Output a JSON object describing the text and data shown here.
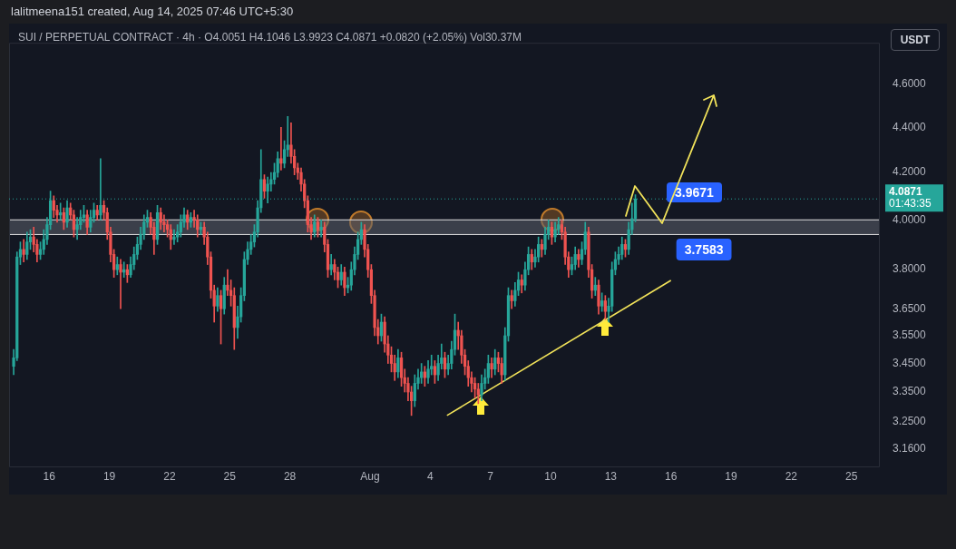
{
  "chart_data": {
    "type": "candlestick",
    "title": "lalitmeena151 created, Aug 14, 2025 07:46 UTC+5:30",
    "subtitle": "SUI / PERPETUAL CONTRACT · 4h · O4.0051 H4.1046 L3.9923 C4.0871 +0.0820 (+2.05%) Vol30.37M",
    "ylabel": "USDT",
    "x": [
      "2025-07-14T05:30",
      "2025-07-14T09:30",
      "2025-07-14T13:30",
      "2025-07-14T17:30",
      "2025-07-14T21:30",
      "2025-07-15T01:30",
      "2025-07-15T05:30",
      "2025-07-15T09:30",
      "2025-07-15T13:30",
      "2025-07-15T17:30",
      "2025-07-15T21:30",
      "2025-07-16T01:30",
      "2025-07-16T05:30",
      "2025-07-16T09:30",
      "2025-07-16T13:30",
      "2025-07-16T17:30",
      "2025-07-16T21:30",
      "2025-07-17T01:30",
      "2025-07-17T05:30",
      "2025-07-17T09:30",
      "2025-07-17T13:30",
      "2025-07-17T17:30",
      "2025-07-17T21:30",
      "2025-07-18T01:30",
      "2025-07-18T05:30",
      "2025-07-18T09:30",
      "2025-07-18T13:30",
      "2025-07-18T17:30",
      "2025-07-18T21:30",
      "2025-07-19T01:30",
      "2025-07-19T05:30",
      "2025-07-19T09:30",
      "2025-07-19T13:30",
      "2025-07-19T17:30",
      "2025-07-19T21:30",
      "2025-07-20T01:30",
      "2025-07-20T05:30",
      "2025-07-20T09:30",
      "2025-07-20T13:30",
      "2025-07-20T17:30",
      "2025-07-20T21:30",
      "2025-07-21T01:30",
      "2025-07-21T05:30",
      "2025-07-21T09:30",
      "2025-07-21T13:30",
      "2025-07-21T17:30",
      "2025-07-21T21:30",
      "2025-07-22T01:30",
      "2025-07-22T05:30",
      "2025-07-22T09:30",
      "2025-07-22T13:30",
      "2025-07-22T17:30",
      "2025-07-22T21:30",
      "2025-07-23T01:30",
      "2025-07-23T05:30",
      "2025-07-23T09:30",
      "2025-07-23T13:30",
      "2025-07-23T17:30",
      "2025-07-23T21:30",
      "2025-07-24T01:30",
      "2025-07-24T05:30",
      "2025-07-24T09:30",
      "2025-07-24T13:30",
      "2025-07-24T17:30",
      "2025-07-24T21:30",
      "2025-07-25T01:30",
      "2025-07-25T05:30",
      "2025-07-25T09:30",
      "2025-07-25T13:30",
      "2025-07-25T17:30",
      "2025-07-25T21:30",
      "2025-07-26T01:30",
      "2025-07-26T05:30",
      "2025-07-26T09:30",
      "2025-07-26T13:30",
      "2025-07-26T17:30",
      "2025-07-26T21:30",
      "2025-07-27T01:30",
      "2025-07-27T05:30",
      "2025-07-27T09:30",
      "2025-07-27T13:30",
      "2025-07-27T17:30",
      "2025-07-27T21:30",
      "2025-07-28T01:30",
      "2025-07-28T05:30",
      "2025-07-28T09:30",
      "2025-07-28T13:30",
      "2025-07-28T17:30",
      "2025-07-28T21:30",
      "2025-07-29T01:30",
      "2025-07-29T05:30",
      "2025-07-29T09:30",
      "2025-07-29T13:30",
      "2025-07-29T17:30",
      "2025-07-29T21:30",
      "2025-07-30T01:30",
      "2025-07-30T05:30",
      "2025-07-30T09:30",
      "2025-07-30T13:30",
      "2025-07-30T17:30",
      "2025-07-30T21:30",
      "2025-07-31T01:30",
      "2025-07-31T05:30",
      "2025-07-31T09:30",
      "2025-07-31T13:30",
      "2025-07-31T17:30",
      "2025-07-31T21:30",
      "2025-08-01T01:30",
      "2025-08-01T05:30",
      "2025-08-01T09:30",
      "2025-08-01T13:30",
      "2025-08-01T17:30",
      "2025-08-01T21:30",
      "2025-08-02T01:30",
      "2025-08-02T05:30",
      "2025-08-02T09:30",
      "2025-08-02T13:30",
      "2025-08-02T17:30",
      "2025-08-02T21:30",
      "2025-08-03T01:30",
      "2025-08-03T05:30",
      "2025-08-03T09:30",
      "2025-08-03T13:30",
      "2025-08-03T17:30",
      "2025-08-03T21:30",
      "2025-08-04T01:30",
      "2025-08-04T05:30",
      "2025-08-04T09:30",
      "2025-08-04T13:30",
      "2025-08-04T17:30",
      "2025-08-04T21:30",
      "2025-08-05T01:30",
      "2025-08-05T05:30",
      "2025-08-05T09:30",
      "2025-08-05T13:30",
      "2025-08-05T17:30",
      "2025-08-05T21:30",
      "2025-08-06T01:30",
      "2025-08-06T05:30",
      "2025-08-06T09:30",
      "2025-08-06T13:30",
      "2025-08-06T17:30",
      "2025-08-06T21:30",
      "2025-08-07T01:30",
      "2025-08-07T05:30",
      "2025-08-07T09:30",
      "2025-08-07T13:30",
      "2025-08-07T17:30",
      "2025-08-07T21:30",
      "2025-08-08T01:30",
      "2025-08-08T05:30",
      "2025-08-08T09:30",
      "2025-08-08T13:30",
      "2025-08-08T17:30",
      "2025-08-08T21:30",
      "2025-08-09T01:30",
      "2025-08-09T05:30",
      "2025-08-09T09:30",
      "2025-08-09T13:30",
      "2025-08-09T17:30",
      "2025-08-09T21:30",
      "2025-08-10T01:30",
      "2025-08-10T05:30",
      "2025-08-10T09:30",
      "2025-08-10T13:30",
      "2025-08-10T17:30",
      "2025-08-10T21:30",
      "2025-08-11T01:30",
      "2025-08-11T05:30",
      "2025-08-11T09:30",
      "2025-08-11T13:30",
      "2025-08-11T17:30",
      "2025-08-11T21:30",
      "2025-08-12T01:30",
      "2025-08-12T05:30",
      "2025-08-12T09:30",
      "2025-08-12T13:30",
      "2025-08-12T17:30",
      "2025-08-12T21:30",
      "2025-08-13T01:30",
      "2025-08-13T05:30",
      "2025-08-13T09:30",
      "2025-08-13T13:30",
      "2025-08-13T17:30",
      "2025-08-13T21:30",
      "2025-08-14T01:30",
      "2025-08-14T05:30"
    ],
    "ohlc": [
      [
        3.44,
        3.5,
        3.41,
        3.47
      ],
      [
        3.47,
        3.87,
        3.46,
        3.85
      ],
      [
        3.85,
        3.91,
        3.82,
        3.88
      ],
      [
        3.88,
        3.92,
        3.83,
        3.86
      ],
      [
        3.86,
        3.95,
        3.84,
        3.91
      ],
      [
        3.91,
        3.96,
        3.88,
        3.93
      ],
      [
        3.93,
        3.97,
        3.87,
        3.9
      ],
      [
        3.9,
        3.92,
        3.83,
        3.86
      ],
      [
        3.86,
        3.91,
        3.84,
        3.88
      ],
      [
        3.88,
        3.96,
        3.86,
        3.92
      ],
      [
        3.92,
        4.01,
        3.9,
        3.98
      ],
      [
        3.98,
        4.12,
        3.96,
        4.08
      ],
      [
        4.08,
        4.1,
        4.01,
        4.04
      ],
      [
        4.04,
        4.06,
        3.99,
        4.02
      ],
      [
        4.02,
        4.07,
        4.0,
        4.03
      ],
      [
        4.03,
        4.05,
        3.96,
        3.99
      ],
      [
        3.99,
        4.08,
        3.97,
        4.05
      ],
      [
        4.05,
        4.07,
        4.0,
        4.02
      ],
      [
        4.02,
        4.04,
        3.93,
        3.96
      ],
      [
        3.96,
        4.01,
        3.92,
        3.98
      ],
      [
        3.98,
        4.04,
        3.96,
        4.01
      ],
      [
        4.01,
        4.06,
        3.99,
        4.02
      ],
      [
        4.02,
        4.04,
        3.94,
        3.97
      ],
      [
        3.97,
        4.04,
        3.95,
        4.01
      ],
      [
        4.01,
        4.07,
        3.99,
        4.04
      ],
      [
        4.04,
        4.06,
        4.0,
        4.02
      ],
      [
        4.02,
        4.26,
        4.0,
        4.06
      ],
      [
        4.06,
        4.08,
        4.0,
        4.03
      ],
      [
        4.03,
        4.05,
        3.92,
        3.95
      ],
      [
        3.95,
        3.97,
        3.83,
        3.86
      ],
      [
        3.86,
        3.88,
        3.77,
        3.8
      ],
      [
        3.8,
        3.85,
        3.78,
        3.82
      ],
      [
        3.82,
        3.84,
        3.65,
        3.79
      ],
      [
        3.79,
        3.83,
        3.77,
        3.8
      ],
      [
        3.8,
        3.82,
        3.75,
        3.78
      ],
      [
        3.78,
        3.85,
        3.77,
        3.82
      ],
      [
        3.82,
        3.89,
        3.8,
        3.86
      ],
      [
        3.86,
        3.93,
        3.84,
        3.9
      ],
      [
        3.9,
        3.97,
        3.88,
        3.94
      ],
      [
        3.94,
        4.02,
        3.92,
        3.99
      ],
      [
        3.99,
        4.04,
        3.97,
        4.01
      ],
      [
        4.01,
        4.03,
        3.94,
        3.97
      ],
      [
        3.97,
        3.99,
        3.86,
        3.92
      ],
      [
        3.92,
        4.06,
        3.9,
        4.03
      ],
      [
        4.03,
        4.05,
        3.96,
        3.99
      ],
      [
        3.99,
        4.02,
        3.95,
        3.98
      ],
      [
        3.98,
        4.0,
        3.93,
        3.96
      ],
      [
        3.96,
        3.98,
        3.88,
        3.92
      ],
      [
        3.92,
        3.96,
        3.9,
        3.93
      ],
      [
        3.93,
        3.98,
        3.91,
        3.95
      ],
      [
        3.95,
        4.02,
        3.93,
        3.99
      ],
      [
        3.99,
        4.05,
        3.97,
        4.02
      ],
      [
        4.02,
        4.04,
        3.96,
        3.99
      ],
      [
        3.99,
        4.03,
        3.97,
        4.01
      ],
      [
        4.01,
        4.04,
        3.97,
        4.0
      ],
      [
        4.0,
        4.02,
        3.93,
        3.96
      ],
      [
        3.96,
        3.99,
        3.94,
        3.97
      ],
      [
        3.97,
        3.99,
        3.9,
        3.93
      ],
      [
        3.93,
        3.95,
        3.82,
        3.85
      ],
      [
        3.85,
        3.87,
        3.69,
        3.72
      ],
      [
        3.72,
        3.74,
        3.6,
        3.66
      ],
      [
        3.66,
        3.73,
        3.64,
        3.7
      ],
      [
        3.7,
        3.72,
        3.52,
        3.65
      ],
      [
        3.65,
        3.77,
        3.63,
        3.74
      ],
      [
        3.74,
        3.8,
        3.7,
        3.72
      ],
      [
        3.72,
        3.76,
        3.66,
        3.7
      ],
      [
        3.7,
        3.73,
        3.5,
        3.58
      ],
      [
        3.58,
        3.66,
        3.54,
        3.62
      ],
      [
        3.62,
        3.73,
        3.6,
        3.7
      ],
      [
        3.7,
        3.87,
        3.68,
        3.84
      ],
      [
        3.84,
        3.91,
        3.82,
        3.88
      ],
      [
        3.88,
        3.94,
        3.86,
        3.91
      ],
      [
        3.91,
        3.98,
        3.89,
        3.95
      ],
      [
        3.95,
        4.08,
        3.93,
        4.05
      ],
      [
        4.05,
        4.3,
        4.03,
        4.17
      ],
      [
        4.17,
        4.19,
        4.09,
        4.12
      ],
      [
        4.12,
        4.18,
        4.07,
        4.15
      ],
      [
        4.15,
        4.2,
        4.12,
        4.17
      ],
      [
        4.17,
        4.24,
        4.15,
        4.2
      ],
      [
        4.2,
        4.29,
        4.18,
        4.26
      ],
      [
        4.26,
        4.4,
        4.21,
        4.24
      ],
      [
        4.24,
        4.34,
        4.22,
        4.3
      ],
      [
        4.3,
        4.45,
        4.27,
        4.32
      ],
      [
        4.32,
        4.42,
        4.24,
        4.27
      ],
      [
        4.27,
        4.3,
        4.19,
        4.22
      ],
      [
        4.22,
        4.24,
        4.17,
        4.2
      ],
      [
        4.2,
        4.22,
        4.12,
        4.15
      ],
      [
        4.15,
        4.17,
        4.05,
        4.08
      ],
      [
        4.08,
        4.1,
        3.95,
        3.98
      ],
      [
        3.98,
        4.01,
        3.92,
        3.95
      ],
      [
        3.95,
        4.02,
        3.93,
        3.99
      ],
      [
        3.99,
        4.01,
        3.93,
        3.96
      ],
      [
        3.96,
        4.0,
        3.93,
        3.97
      ],
      [
        3.97,
        3.99,
        3.87,
        3.9
      ],
      [
        3.9,
        3.92,
        3.77,
        3.8
      ],
      [
        3.8,
        3.86,
        3.78,
        3.82
      ],
      [
        3.82,
        3.84,
        3.76,
        3.79
      ],
      [
        3.79,
        3.81,
        3.73,
        3.76
      ],
      [
        3.76,
        3.82,
        3.74,
        3.79
      ],
      [
        3.79,
        3.81,
        3.7,
        3.73
      ],
      [
        3.73,
        3.77,
        3.71,
        3.74
      ],
      [
        3.74,
        3.83,
        3.72,
        3.8
      ],
      [
        3.8,
        3.89,
        3.78,
        3.86
      ],
      [
        3.86,
        3.95,
        3.84,
        3.92
      ],
      [
        3.92,
        3.99,
        3.9,
        3.96
      ],
      [
        3.96,
        3.98,
        3.85,
        3.88
      ],
      [
        3.88,
        3.9,
        3.77,
        3.8
      ],
      [
        3.8,
        3.82,
        3.67,
        3.7
      ],
      [
        3.7,
        3.72,
        3.55,
        3.58
      ],
      [
        3.58,
        3.61,
        3.52,
        3.55
      ],
      [
        3.55,
        3.63,
        3.53,
        3.6
      ],
      [
        3.6,
        3.62,
        3.49,
        3.52
      ],
      [
        3.52,
        3.55,
        3.45,
        3.48
      ],
      [
        3.48,
        3.51,
        3.42,
        3.45
      ],
      [
        3.45,
        3.48,
        3.39,
        3.42
      ],
      [
        3.42,
        3.5,
        3.4,
        3.47
      ],
      [
        3.47,
        3.49,
        3.37,
        3.4
      ],
      [
        3.4,
        3.43,
        3.35,
        3.38
      ],
      [
        3.38,
        3.4,
        3.32,
        3.35
      ],
      [
        3.35,
        3.37,
        3.27,
        3.32
      ],
      [
        3.32,
        3.41,
        3.3,
        3.38
      ],
      [
        3.38,
        3.43,
        3.36,
        3.4
      ],
      [
        3.4,
        3.45,
        3.38,
        3.42
      ],
      [
        3.42,
        3.44,
        3.37,
        3.4
      ],
      [
        3.4,
        3.46,
        3.38,
        3.43
      ],
      [
        3.43,
        3.48,
        3.41,
        3.44
      ],
      [
        3.44,
        3.46,
        3.38,
        3.41
      ],
      [
        3.41,
        3.48,
        3.39,
        3.45
      ],
      [
        3.45,
        3.52,
        3.43,
        3.47
      ],
      [
        3.47,
        3.49,
        3.4,
        3.43
      ],
      [
        3.43,
        3.48,
        3.41,
        3.45
      ],
      [
        3.45,
        3.53,
        3.43,
        3.5
      ],
      [
        3.5,
        3.63,
        3.48,
        3.57
      ],
      [
        3.57,
        3.6,
        3.5,
        3.55
      ],
      [
        3.55,
        3.57,
        3.45,
        3.48
      ],
      [
        3.48,
        3.5,
        3.41,
        3.44
      ],
      [
        3.44,
        3.46,
        3.37,
        3.4
      ],
      [
        3.4,
        3.42,
        3.35,
        3.38
      ],
      [
        3.38,
        3.4,
        3.33,
        3.36
      ],
      [
        3.36,
        3.38,
        3.31,
        3.34
      ],
      [
        3.34,
        3.41,
        3.32,
        3.38
      ],
      [
        3.38,
        3.43,
        3.36,
        3.4
      ],
      [
        3.4,
        3.48,
        3.38,
        3.45
      ],
      [
        3.45,
        3.47,
        3.4,
        3.43
      ],
      [
        3.43,
        3.5,
        3.41,
        3.47
      ],
      [
        3.47,
        3.49,
        3.42,
        3.45
      ],
      [
        3.45,
        3.47,
        3.38,
        3.41
      ],
      [
        3.41,
        3.58,
        3.39,
        3.55
      ],
      [
        3.55,
        3.73,
        3.53,
        3.7
      ],
      [
        3.7,
        3.72,
        3.65,
        3.68
      ],
      [
        3.68,
        3.75,
        3.66,
        3.72
      ],
      [
        3.72,
        3.79,
        3.7,
        3.76
      ],
      [
        3.76,
        3.78,
        3.71,
        3.74
      ],
      [
        3.74,
        3.83,
        3.72,
        3.8
      ],
      [
        3.8,
        3.89,
        3.78,
        3.86
      ],
      [
        3.86,
        3.88,
        3.8,
        3.83
      ],
      [
        3.83,
        3.88,
        3.81,
        3.85
      ],
      [
        3.85,
        3.93,
        3.83,
        3.9
      ],
      [
        3.9,
        3.92,
        3.85,
        3.88
      ],
      [
        3.88,
        3.97,
        3.86,
        3.94
      ],
      [
        3.94,
        4.0,
        3.92,
        3.97
      ],
      [
        3.97,
        3.99,
        3.9,
        3.93
      ],
      [
        3.93,
        3.99,
        3.91,
        3.96
      ],
      [
        3.96,
        4.01,
        3.94,
        3.98
      ],
      [
        3.98,
        4.0,
        3.92,
        3.95
      ],
      [
        3.95,
        3.97,
        3.82,
        3.85
      ],
      [
        3.85,
        3.87,
        3.77,
        3.8
      ],
      [
        3.8,
        3.85,
        3.78,
        3.82
      ],
      [
        3.82,
        3.89,
        3.8,
        3.86
      ],
      [
        3.86,
        3.88,
        3.81,
        3.84
      ],
      [
        3.84,
        3.91,
        3.82,
        3.88
      ],
      [
        3.88,
        3.99,
        3.86,
        3.95
      ],
      [
        3.95,
        3.97,
        3.77,
        3.8
      ],
      [
        3.8,
        3.82,
        3.69,
        3.72
      ],
      [
        3.72,
        3.77,
        3.7,
        3.74
      ],
      [
        3.74,
        3.76,
        3.63,
        3.66
      ],
      [
        3.66,
        3.71,
        3.64,
        3.68
      ],
      [
        3.68,
        3.7,
        3.61,
        3.64
      ],
      [
        3.64,
        3.69,
        3.6,
        3.66
      ],
      [
        3.66,
        3.83,
        3.64,
        3.8
      ],
      [
        3.8,
        3.87,
        3.78,
        3.84
      ],
      [
        3.84,
        3.89,
        3.82,
        3.86
      ],
      [
        3.86,
        3.93,
        3.84,
        3.9
      ],
      [
        3.9,
        3.92,
        3.85,
        3.88
      ],
      [
        3.88,
        3.99,
        3.86,
        3.96
      ],
      [
        3.96,
        4.07,
        3.94,
        4.0051
      ],
      [
        4.0051,
        4.1046,
        3.9923,
        4.0871
      ]
    ],
    "series": [
      {
        "type": "line",
        "x": [
          "2025-08-04T20:00",
          "2025-08-16T00:00"
        ],
        "values": [
          3.27,
          3.7583
        ],
        "color": "#f2e35a"
      }
    ],
    "marker": "none",
    "line_style": "solid",
    "xlim": [
      "2025-07-14T00:00",
      "2025-08-26T10:00"
    ],
    "xticks": [
      {
        "value": "2025-07-16",
        "label": "16"
      },
      {
        "value": "2025-07-19",
        "label": "19"
      },
      {
        "value": "2025-07-22",
        "label": "22"
      },
      {
        "value": "2025-07-25",
        "label": "25"
      },
      {
        "value": "2025-07-28",
        "label": "28"
      },
      {
        "value": "2025-08-01",
        "label": "Aug"
      },
      {
        "value": "2025-08-04",
        "label": "4"
      },
      {
        "value": "2025-08-07",
        "label": "7"
      },
      {
        "value": "2025-08-10",
        "label": "10"
      },
      {
        "value": "2025-08-13",
        "label": "13"
      },
      {
        "value": "2025-08-16",
        "label": "16"
      },
      {
        "value": "2025-08-19",
        "label": "19"
      },
      {
        "value": "2025-08-22",
        "label": "22"
      },
      {
        "value": "2025-08-25",
        "label": "25"
      }
    ],
    "ylim": [
      3.1,
      4.8
    ],
    "log": true,
    "yticks": [
      {
        "value": 3.16,
        "label": "3.1600"
      },
      {
        "value": 3.25,
        "label": "3.2500"
      },
      {
        "value": 3.35,
        "label": "3.3500"
      },
      {
        "value": 3.45,
        "label": "3.4500"
      },
      {
        "value": 3.55,
        "label": "3.5500"
      },
      {
        "value": 3.65,
        "label": "3.6500"
      },
      {
        "value": 3.8,
        "label": "3.8000"
      },
      {
        "value": 4.0,
        "label": "4.0000"
      },
      {
        "value": 4.2,
        "label": "4.2000"
      },
      {
        "value": 4.4,
        "label": "4.4000"
      },
      {
        "value": 4.6,
        "label": "4.6000"
      }
    ],
    "ref_lines": [
      {
        "axis": "y",
        "value": 4.0871,
        "label": "4.0871",
        "color": "#26a69a",
        "line_style": "dotted"
      }
    ],
    "bands": [
      {
        "axis": "y",
        "from": 3.94,
        "to": 4.0,
        "color": "#5d606b"
      }
    ],
    "annotations": [
      "01:43:35",
      "3.9671",
      {
        "text": "3.7583",
        "x": "2025-08-16T00:00",
        "y": 3.7583
      }
    ],
    "grid": false,
    "legend": false
  }
}
